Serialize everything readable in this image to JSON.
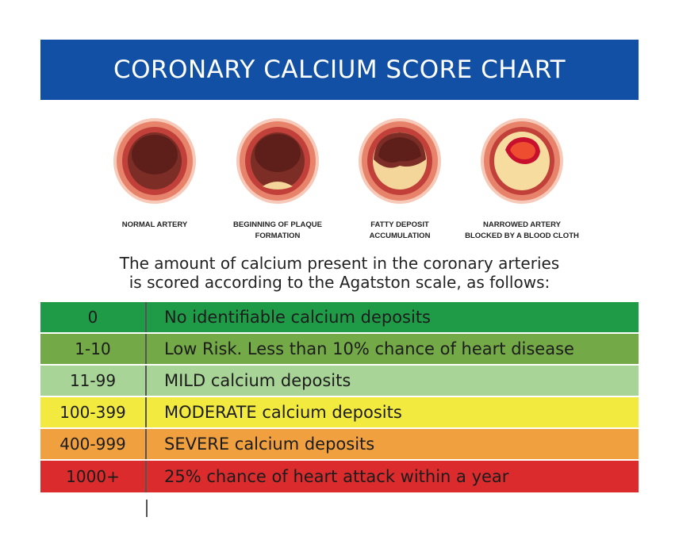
{
  "header": {
    "title": "CORONARY CALCIUM SCORE CHART"
  },
  "arteries": [
    {
      "label_line1": "NORMAL ARTERY",
      "label_line2": "",
      "icon": "normal-artery-icon"
    },
    {
      "label_line1": "BEGINNING OF PLAQUE",
      "label_line2": "FORMATION",
      "icon": "plaque-artery-icon"
    },
    {
      "label_line1": "FATTY DEPOSIT",
      "label_line2": "ACCUMULATION",
      "icon": "fatty-deposit-artery-icon"
    },
    {
      "label_line1": "NARROWED ARTERY",
      "label_line2": "BLOCKED BY A BLOOD CLOTH",
      "icon": "blocked-artery-icon"
    }
  ],
  "intro": {
    "line1": "The amount of calcium present in the coronary arteries",
    "line2": "is scored according to the Agatston scale, as follows:"
  },
  "scale": [
    {
      "score": "0",
      "description": "No identifiable calcium deposits",
      "color": "#1f9b48"
    },
    {
      "score": "1-10",
      "description": "Low Risk. Less than 10% chance of heart disease",
      "color": "#73a946"
    },
    {
      "score": "11-99",
      "description": "MILD calcium deposits",
      "color": "#a8d597"
    },
    {
      "score": "100-399",
      "description": "MODERATE calcium deposits",
      "color": "#f2ea3e"
    },
    {
      "score": "400-999",
      "description": "SEVERE calcium deposits",
      "color": "#f0a03f"
    },
    {
      "score": "1000+",
      "description": "25% chance of heart attack within a year",
      "color": "#db2b2d"
    }
  ]
}
